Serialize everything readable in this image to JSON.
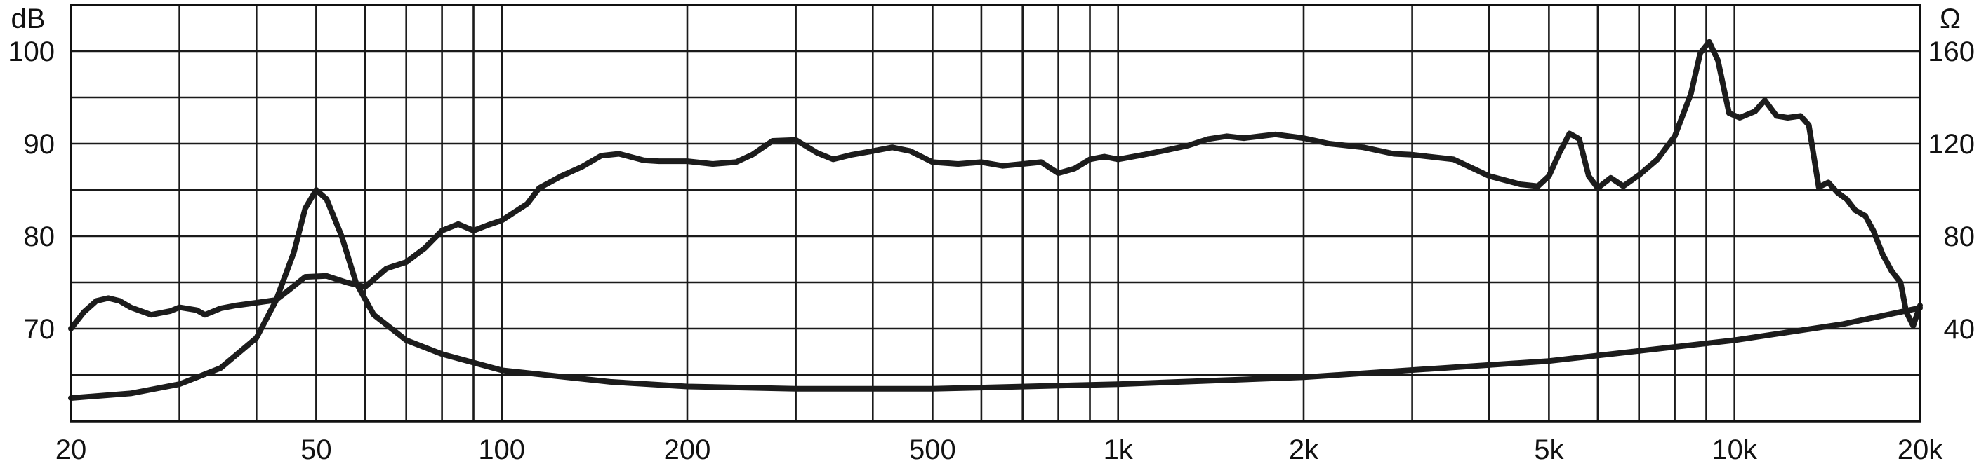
{
  "chart_data": {
    "type": "line",
    "title": "",
    "xscale": "log",
    "xlim": [
      20,
      20000
    ],
    "grid": true,
    "x_ticks": [
      {
        "value": 20,
        "label": "20"
      },
      {
        "value": 50,
        "label": "50"
      },
      {
        "value": 100,
        "label": "100"
      },
      {
        "value": 200,
        "label": "200"
      },
      {
        "value": 500,
        "label": "500"
      },
      {
        "value": 1000,
        "label": "1k"
      },
      {
        "value": 2000,
        "label": "2k"
      },
      {
        "value": 5000,
        "label": "5k"
      },
      {
        "value": 10000,
        "label": "10k"
      },
      {
        "value": 20000,
        "label": "20k"
      }
    ],
    "y_left": {
      "unit": "dB",
      "lim": [
        60,
        105
      ],
      "ticks": [
        {
          "value": 70,
          "label": "70"
        },
        {
          "value": 80,
          "label": "80"
        },
        {
          "value": 90,
          "label": "90"
        },
        {
          "value": 100,
          "label": "100"
        }
      ]
    },
    "y_right": {
      "unit": "Ω",
      "lim": [
        0,
        180
      ],
      "ticks": [
        {
          "value": 40,
          "label": "40"
        },
        {
          "value": 80,
          "label": "80"
        },
        {
          "value": 120,
          "label": "120"
        },
        {
          "value": 160,
          "label": "160"
        }
      ]
    },
    "series": [
      {
        "axis": "left",
        "values": [
          [
            20,
            70
          ],
          [
            21,
            71.8
          ],
          [
            22,
            73
          ],
          [
            23,
            73.3
          ],
          [
            24,
            73
          ],
          [
            25,
            72.3
          ],
          [
            27,
            71.5
          ],
          [
            29,
            71.9
          ],
          [
            30,
            72.3
          ],
          [
            32,
            72
          ],
          [
            33,
            71.5
          ],
          [
            35,
            72.2
          ],
          [
            37,
            72.5
          ],
          [
            40,
            72.8
          ],
          [
            43,
            73.1
          ],
          [
            45,
            74.1
          ],
          [
            48,
            75.6
          ],
          [
            52,
            75.7
          ],
          [
            56,
            75
          ],
          [
            60,
            74.5
          ],
          [
            65,
            76.5
          ],
          [
            70,
            77.2
          ],
          [
            75,
            78.7
          ],
          [
            80,
            80.6
          ],
          [
            85,
            81.3
          ],
          [
            90,
            80.6
          ],
          [
            95,
            81.2
          ],
          [
            100,
            81.7
          ],
          [
            110,
            83.5
          ],
          [
            115,
            85.2
          ],
          [
            125,
            86.5
          ],
          [
            135,
            87.5
          ],
          [
            145,
            88.7
          ],
          [
            155,
            88.9
          ],
          [
            170,
            88.2
          ],
          [
            180,
            88.1
          ],
          [
            200,
            88.1
          ],
          [
            220,
            87.8
          ],
          [
            240,
            88
          ],
          [
            255,
            88.8
          ],
          [
            275,
            90.3
          ],
          [
            300,
            90.4
          ],
          [
            325,
            89
          ],
          [
            345,
            88.3
          ],
          [
            370,
            88.8
          ],
          [
            400,
            89.2
          ],
          [
            430,
            89.6
          ],
          [
            460,
            89.2
          ],
          [
            500,
            88
          ],
          [
            550,
            87.8
          ],
          [
            600,
            88
          ],
          [
            650,
            87.6
          ],
          [
            700,
            87.8
          ],
          [
            750,
            88
          ],
          [
            800,
            86.8
          ],
          [
            850,
            87.3
          ],
          [
            900,
            88.3
          ],
          [
            950,
            88.6
          ],
          [
            1000,
            88.3
          ],
          [
            1100,
            88.8
          ],
          [
            1200,
            89.3
          ],
          [
            1300,
            89.8
          ],
          [
            1400,
            90.5
          ],
          [
            1500,
            90.8
          ],
          [
            1600,
            90.6
          ],
          [
            1700,
            90.8
          ],
          [
            1800,
            91
          ],
          [
            2000,
            90.6
          ],
          [
            2200,
            90
          ],
          [
            2500,
            89.6
          ],
          [
            2800,
            88.9
          ],
          [
            3000,
            88.8
          ],
          [
            3500,
            88.3
          ],
          [
            4000,
            86.5
          ],
          [
            4500,
            85.6
          ],
          [
            4800,
            85.4
          ],
          [
            5000,
            86.5
          ],
          [
            5200,
            89
          ],
          [
            5400,
            91.1
          ],
          [
            5600,
            90.5
          ],
          [
            5800,
            86.5
          ],
          [
            6000,
            85.2
          ],
          [
            6300,
            86.3
          ],
          [
            6600,
            85.4
          ],
          [
            7000,
            86.6
          ],
          [
            7500,
            88.3
          ],
          [
            8000,
            90.8
          ],
          [
            8500,
            95.4
          ],
          [
            8800,
            99.8
          ],
          [
            9100,
            101
          ],
          [
            9400,
            99
          ],
          [
            9800,
            93.3
          ],
          [
            10200,
            92.8
          ],
          [
            10800,
            93.5
          ],
          [
            11200,
            94.7
          ],
          [
            11700,
            93
          ],
          [
            12200,
            92.8
          ],
          [
            12800,
            93
          ],
          [
            13200,
            92
          ],
          [
            13700,
            85.3
          ],
          [
            14200,
            85.8
          ],
          [
            14700,
            84.7
          ],
          [
            15200,
            84
          ],
          [
            15700,
            82.8
          ],
          [
            16300,
            82.2
          ],
          [
            16800,
            80.6
          ],
          [
            17400,
            78
          ],
          [
            18000,
            76.2
          ],
          [
            18600,
            75
          ],
          [
            19000,
            71.8
          ],
          [
            19500,
            70.3
          ],
          [
            20000,
            72.5
          ]
        ]
      },
      {
        "axis": "right",
        "values": [
          [
            20,
            10
          ],
          [
            25,
            12
          ],
          [
            30,
            16
          ],
          [
            35,
            23
          ],
          [
            40,
            36
          ],
          [
            43,
            52
          ],
          [
            46,
            73
          ],
          [
            48,
            92
          ],
          [
            50,
            100
          ],
          [
            52,
            96
          ],
          [
            55,
            80
          ],
          [
            58,
            60
          ],
          [
            62,
            46
          ],
          [
            70,
            35
          ],
          [
            80,
            29
          ],
          [
            100,
            22
          ],
          [
            150,
            17
          ],
          [
            200,
            15
          ],
          [
            300,
            14
          ],
          [
            500,
            14
          ],
          [
            1000,
            16
          ],
          [
            2000,
            19
          ],
          [
            5000,
            26
          ],
          [
            10000,
            35
          ],
          [
            15000,
            42
          ],
          [
            20000,
            49
          ]
        ]
      }
    ]
  }
}
